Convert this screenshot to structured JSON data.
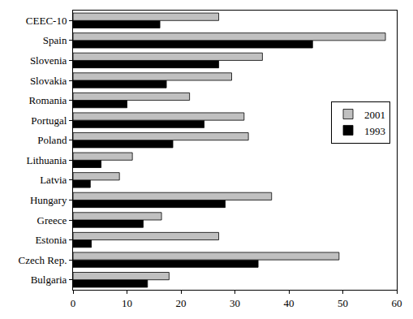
{
  "chart_data": {
    "type": "bar",
    "orientation": "horizontal",
    "categories": [
      "Bulgaria",
      "Czech Rep.",
      "Estonia",
      "Greece",
      "Hungary",
      "Latvia",
      "Lithuania",
      "Poland",
      "Portugal",
      "Romania",
      "Slovakia",
      "Slovenia",
      "Spain",
      "CEEC-10"
    ],
    "series": [
      {
        "name": "2001",
        "color": "#c0c0c0",
        "values": [
          17.8,
          49.3,
          27.0,
          16.4,
          36.8,
          8.6,
          11.0,
          32.5,
          31.7,
          21.6,
          29.4,
          35.1,
          57.9,
          27.0
        ]
      },
      {
        "name": "1993",
        "color": "#000000",
        "values": [
          13.8,
          34.3,
          3.4,
          13.0,
          28.2,
          3.2,
          5.2,
          18.5,
          24.3,
          10.0,
          17.3,
          27.0,
          44.4,
          16.1
        ]
      }
    ],
    "xlim": [
      0,
      60
    ],
    "xticks": [
      0,
      10,
      20,
      30,
      40,
      50,
      60
    ],
    "grid": false,
    "legend": "right"
  }
}
